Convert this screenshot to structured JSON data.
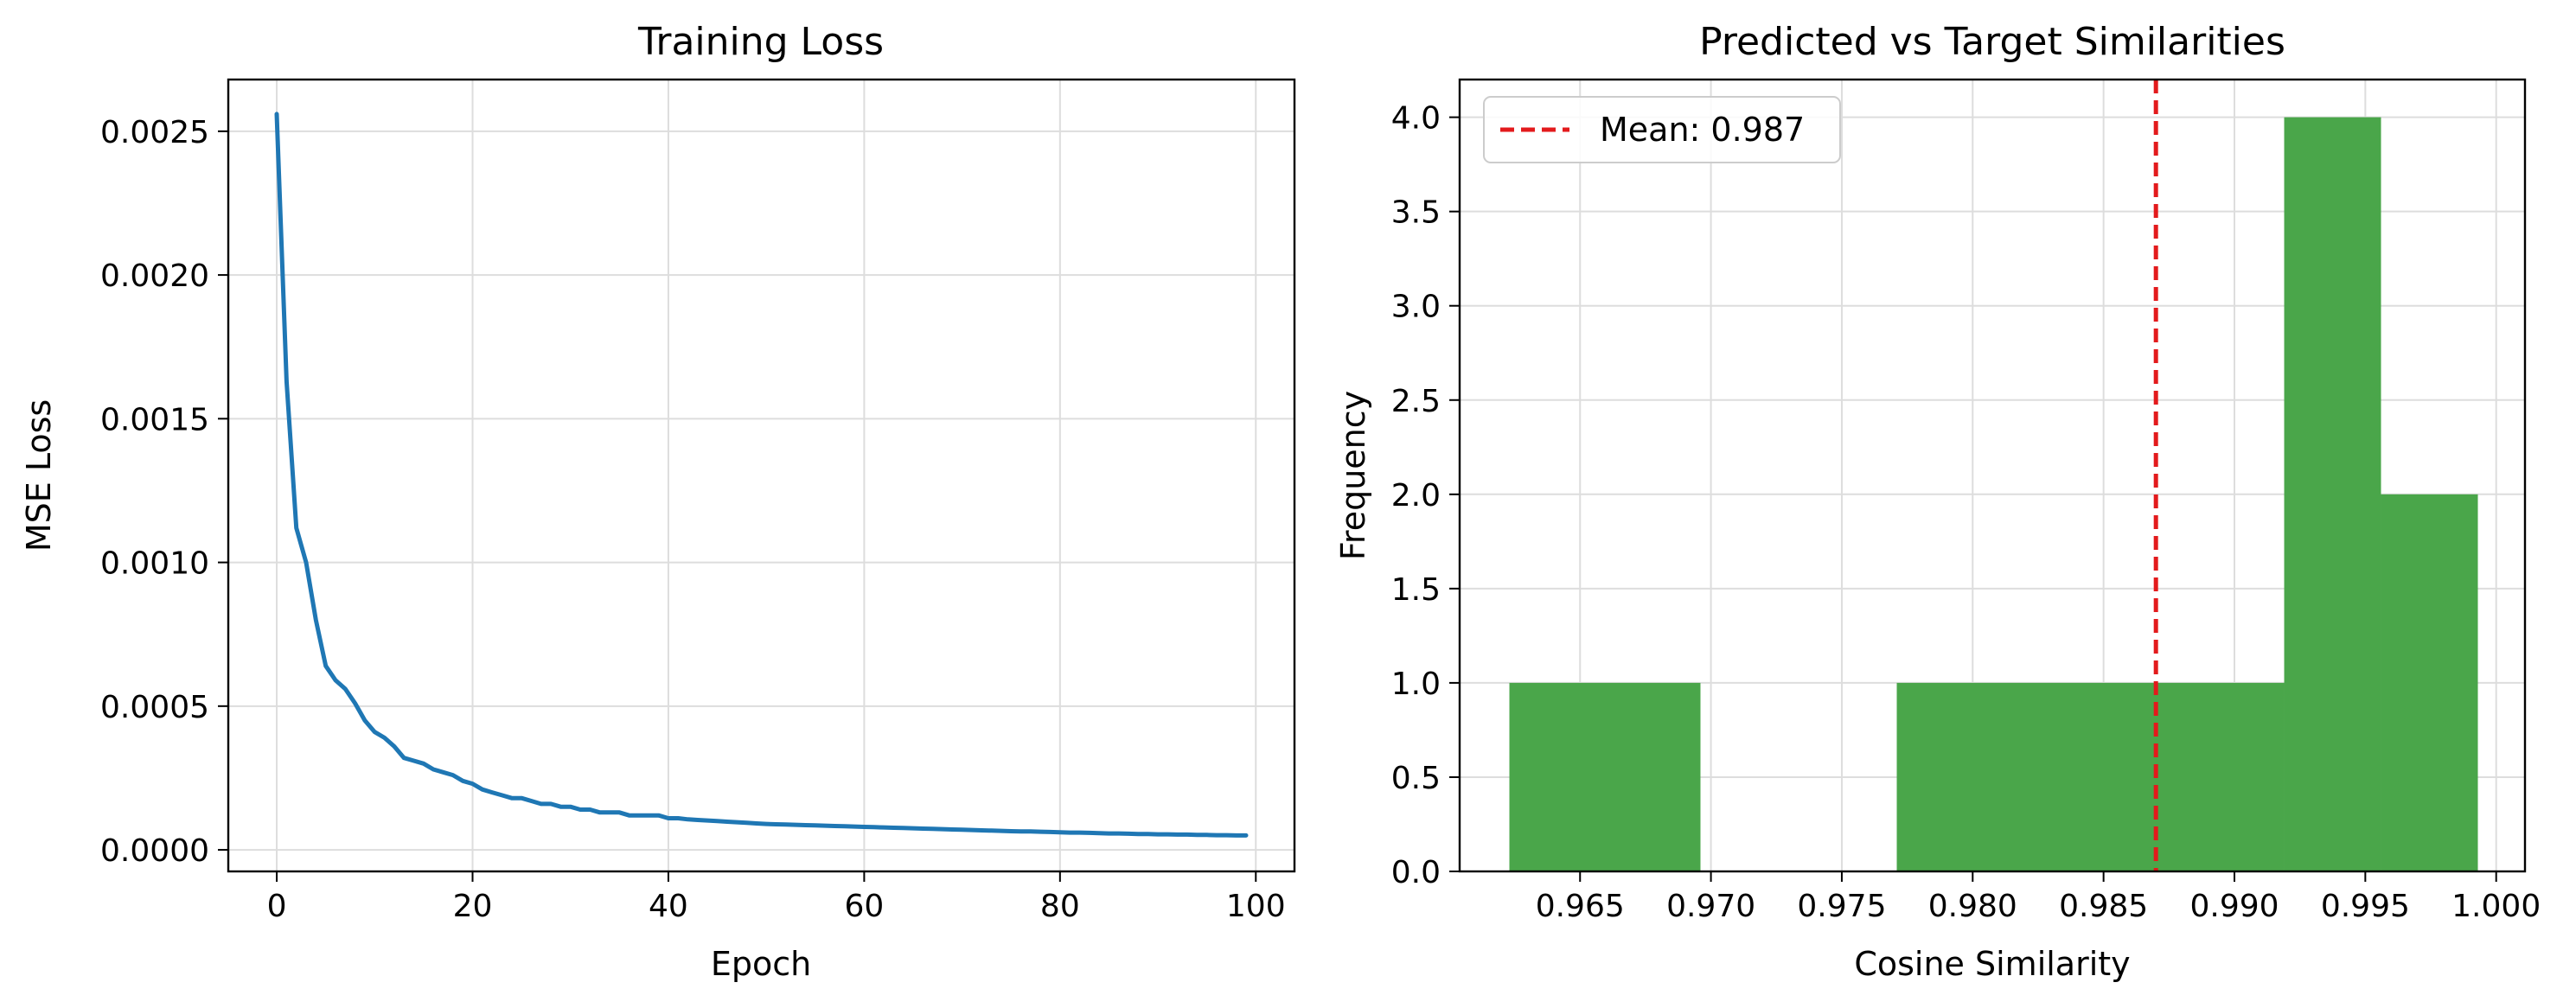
{
  "chart_data": [
    {
      "type": "line",
      "title": "Training Loss",
      "xlabel": "Epoch",
      "ylabel": "MSE Loss",
      "xlim": [
        -4.95,
        103.95
      ],
      "ylim": [
        -7.5e-05,
        0.00268
      ],
      "xticks": [
        0,
        20,
        40,
        60,
        80,
        100
      ],
      "xtick_labels": [
        "0",
        "20",
        "40",
        "60",
        "80",
        "100"
      ],
      "yticks": [
        0.0,
        0.0005,
        0.001,
        0.0015,
        0.002,
        0.0025
      ],
      "ytick_labels": [
        "0.0000",
        "0.0005",
        "0.0010",
        "0.0015",
        "0.0020",
        "0.0025"
      ],
      "grid": true,
      "series": [
        {
          "color": "#1f77b4",
          "x": [
            0,
            1,
            2,
            3,
            4,
            5,
            6,
            7,
            8,
            9,
            10,
            11,
            12,
            13,
            14,
            15,
            16,
            17,
            18,
            19,
            20,
            21,
            22,
            23,
            24,
            25,
            26,
            27,
            28,
            29,
            30,
            31,
            32,
            33,
            34,
            35,
            36,
            37,
            38,
            39,
            40,
            41,
            42,
            43,
            44,
            45,
            46,
            47,
            48,
            49,
            50,
            51,
            52,
            53,
            54,
            55,
            56,
            57,
            58,
            59,
            60,
            61,
            62,
            63,
            64,
            65,
            66,
            67,
            68,
            69,
            70,
            71,
            72,
            73,
            74,
            75,
            76,
            77,
            78,
            79,
            80,
            81,
            82,
            83,
            84,
            85,
            86,
            87,
            88,
            89,
            90,
            91,
            92,
            93,
            94,
            95,
            96,
            97,
            98,
            99
          ],
          "y": [
            0.00256,
            0.00163,
            0.00112,
            0.001,
            0.0008,
            0.00064,
            0.00059,
            0.00056,
            0.00051,
            0.00045,
            0.00041,
            0.00039,
            0.00036,
            0.00032,
            0.00031,
            0.0003,
            0.00028,
            0.00027,
            0.00026,
            0.00024,
            0.00023,
            0.00021,
            0.0002,
            0.00019,
            0.00018,
            0.00018,
            0.00017,
            0.00016,
            0.00016,
            0.00015,
            0.00015,
            0.00014,
            0.00014,
            0.00013,
            0.00013,
            0.00013,
            0.00012,
            0.00012,
            0.00012,
            0.00012,
            0.00011,
            0.00011,
            0.000106,
            0.000104,
            0.000102,
            0.0001,
            9.8e-05,
            9.6e-05,
            9.4e-05,
            9.2e-05,
            9e-05,
            8.9e-05,
            8.8e-05,
            8.7e-05,
            8.6e-05,
            8.5e-05,
            8.4e-05,
            8.3e-05,
            8.2e-05,
            8.1e-05,
            8e-05,
            7.9e-05,
            7.8e-05,
            7.7e-05,
            7.6e-05,
            7.5e-05,
            7.4e-05,
            7.3e-05,
            7.2e-05,
            7.1e-05,
            7e-05,
            6.9e-05,
            6.8e-05,
            6.7e-05,
            6.6e-05,
            6.5e-05,
            6.4e-05,
            6.4e-05,
            6.3e-05,
            6.2e-05,
            6.1e-05,
            6e-05,
            6e-05,
            5.9e-05,
            5.8e-05,
            5.7e-05,
            5.7e-05,
            5.6e-05,
            5.5e-05,
            5.5e-05,
            5.4e-05,
            5.4e-05,
            5.3e-05,
            5.3e-05,
            5.2e-05,
            5.2e-05,
            5.1e-05,
            5.1e-05,
            5e-05,
            5e-05
          ]
        }
      ]
    },
    {
      "type": "bar",
      "subtype": "histogram",
      "title": "Predicted vs Target Similarities",
      "xlabel": "Cosine Similarity",
      "ylabel": "Frequency",
      "xlim": [
        0.9604,
        1.0011
      ],
      "ylim": [
        0,
        4.2
      ],
      "xticks": [
        0.965,
        0.97,
        0.975,
        0.98,
        0.985,
        0.99,
        0.995,
        1.0
      ],
      "xtick_labels": [
        "0.965",
        "0.970",
        "0.975",
        "0.980",
        "0.985",
        "0.990",
        "0.995",
        "1.000"
      ],
      "yticks": [
        0.0,
        0.5,
        1.0,
        1.5,
        2.0,
        2.5,
        3.0,
        3.5,
        4.0
      ],
      "ytick_labels": [
        "0.0",
        "0.5",
        "1.0",
        "1.5",
        "2.0",
        "2.5",
        "3.0",
        "3.5",
        "4.0"
      ],
      "grid": true,
      "bar_color": "#4aa64a",
      "bins": [
        {
          "x0": 0.9623,
          "x1": 0.9696,
          "count": 1
        },
        {
          "x0": 0.9696,
          "x1": 0.9771,
          "count": 0
        },
        {
          "x0": 0.9771,
          "x1": 0.9919,
          "count": 1
        },
        {
          "x0": 0.9919,
          "x1": 0.9956,
          "count": 4
        },
        {
          "x0": 0.9956,
          "x1": 0.9993,
          "count": 2
        }
      ],
      "mean_line": {
        "value": 0.987,
        "color": "#e31a1c"
      },
      "legend": {
        "position": "top-left",
        "label": "Mean: 0.987"
      }
    }
  ]
}
